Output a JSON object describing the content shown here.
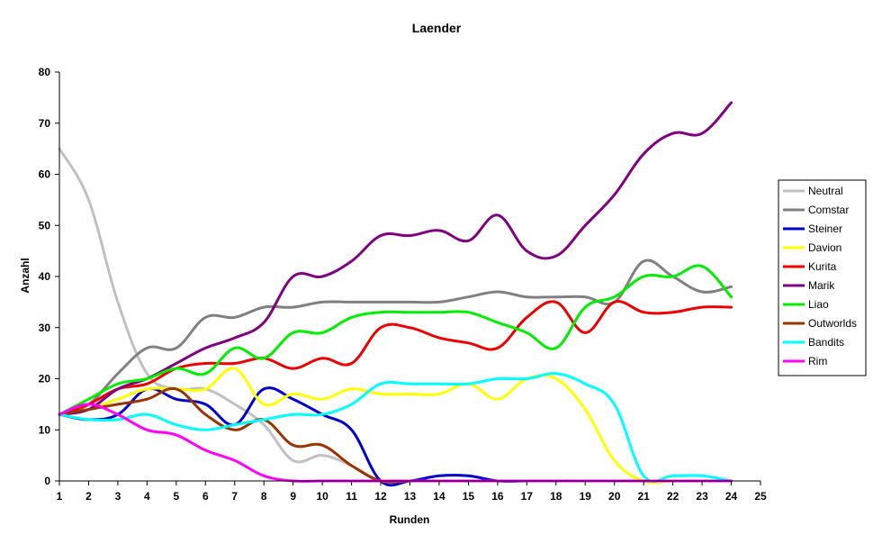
{
  "chart_data": {
    "type": "line",
    "title": "Laender",
    "xlabel": "Runden",
    "ylabel": "Anzahl",
    "xlim": [
      1,
      25
    ],
    "ylim": [
      0,
      80
    ],
    "x_ticks": [
      1,
      2,
      3,
      4,
      5,
      6,
      7,
      8,
      9,
      10,
      11,
      12,
      13,
      14,
      15,
      16,
      17,
      18,
      19,
      20,
      21,
      22,
      23,
      24,
      25
    ],
    "y_ticks": [
      0,
      10,
      20,
      30,
      40,
      50,
      60,
      70,
      80
    ],
    "grid": false,
    "legend_position": "right",
    "x": [
      1,
      2,
      3,
      4,
      5,
      6,
      7,
      8,
      9,
      10,
      11,
      12,
      13,
      14,
      15,
      16,
      17,
      18,
      19,
      20,
      21,
      22,
      23,
      24
    ],
    "series": [
      {
        "name": "Neutral",
        "color": "#c0c0c0",
        "values": [
          65,
          55,
          35,
          21,
          18,
          18,
          15,
          11,
          4,
          5,
          3,
          0,
          0,
          0,
          0,
          0,
          0,
          0,
          0,
          0,
          0,
          0,
          0,
          0
        ]
      },
      {
        "name": "Comstar",
        "color": "#808080",
        "values": [
          13,
          15,
          21,
          26,
          26,
          32,
          32,
          34,
          34,
          35,
          35,
          35,
          35,
          35,
          36,
          37,
          36,
          36,
          36,
          35,
          43,
          40,
          37,
          38
        ]
      },
      {
        "name": "Steiner",
        "color": "#0000cc",
        "values": [
          13,
          12,
          13,
          18,
          16,
          15,
          11,
          18,
          16,
          13,
          10,
          0,
          0,
          1,
          1,
          0,
          0,
          0,
          0,
          0,
          0,
          0,
          0,
          0
        ]
      },
      {
        "name": "Davion",
        "color": "#ffff00",
        "values": [
          13,
          14,
          16,
          18,
          18,
          18,
          22,
          15,
          17,
          16,
          18,
          17,
          17,
          17,
          19,
          16,
          20,
          20,
          14,
          4,
          0,
          0,
          0,
          0
        ]
      },
      {
        "name": "Kurita",
        "color": "#ee0000",
        "values": [
          13,
          15,
          18,
          19,
          22,
          23,
          23,
          24,
          22,
          24,
          23,
          30,
          30,
          28,
          27,
          26,
          32,
          35,
          29,
          35,
          33,
          33,
          34,
          34
        ]
      },
      {
        "name": "Marik",
        "color": "#800080",
        "values": [
          13,
          14,
          18,
          20,
          23,
          26,
          28,
          31,
          40,
          40,
          43,
          48,
          48,
          49,
          47,
          52,
          45,
          44,
          50,
          56,
          64,
          68,
          68,
          74
        ]
      },
      {
        "name": "Liao",
        "color": "#00ee00",
        "values": [
          13,
          16,
          19,
          20,
          22,
          21,
          26,
          24,
          29,
          29,
          32,
          33,
          33,
          33,
          33,
          31,
          29,
          26,
          34,
          36,
          40,
          40,
          42,
          36
        ]
      },
      {
        "name": "Outworlds",
        "color": "#993300",
        "values": [
          13,
          14,
          15,
          16,
          18,
          13,
          10,
          12,
          7,
          7,
          3,
          0,
          0,
          0,
          0,
          0,
          0,
          0,
          0,
          0,
          0,
          0,
          0,
          0
        ]
      },
      {
        "name": "Bandits",
        "color": "#00ffff",
        "values": [
          13,
          12,
          12,
          13,
          11,
          10,
          11,
          12,
          13,
          13,
          15,
          19,
          19,
          19,
          19,
          20,
          20,
          21,
          19,
          15,
          1,
          1,
          1,
          0
        ]
      },
      {
        "name": "Rim",
        "color": "#ff00ff",
        "values": [
          13,
          15,
          13,
          10,
          9,
          6,
          4,
          1,
          0,
          0,
          0,
          0,
          0,
          0,
          0,
          0,
          0,
          0,
          0,
          0,
          0,
          0,
          0,
          0
        ]
      }
    ]
  }
}
